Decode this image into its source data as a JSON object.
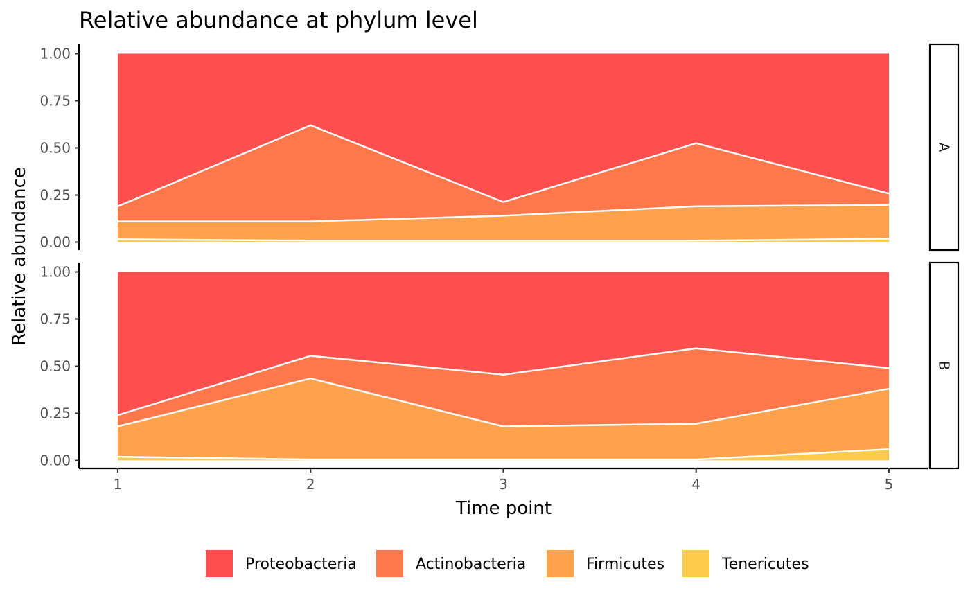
{
  "chart_data": {
    "type": "area",
    "stacked": true,
    "title": "Relative abundance at phylum level",
    "xlabel": "Time point",
    "ylabel": "Relative abundance",
    "x": [
      1,
      2,
      3,
      4,
      5
    ],
    "x_ticks": [
      "1",
      "2",
      "3",
      "4",
      "5"
    ],
    "y_ticks": [
      "0.00",
      "0.25",
      "0.50",
      "0.75",
      "1.00"
    ],
    "ylim": [
      0,
      1
    ],
    "grid": false,
    "legend_position": "bottom",
    "facet_labels": [
      "A",
      "B"
    ],
    "legend": [
      {
        "name": "Proteobacteria",
        "color": "#FF4F4F"
      },
      {
        "name": "Actinobacteria",
        "color": "#FF784C"
      },
      {
        "name": "Firmicutes",
        "color": "#FFA24B"
      },
      {
        "name": "Tenericutes",
        "color": "#FFCB4B"
      }
    ],
    "facets": [
      {
        "label": "A",
        "series": [
          {
            "name": "Tenericutes",
            "values": [
              0.015,
              0.008,
              0.008,
              0.008,
              0.018
            ]
          },
          {
            "name": "Firmicutes",
            "values": [
              0.095,
              0.102,
              0.132,
              0.182,
              0.18
            ]
          },
          {
            "name": "Actinobacteria",
            "values": [
              0.08,
              0.51,
              0.073,
              0.335,
              0.06
            ]
          },
          {
            "name": "Proteobacteria",
            "values": [
              0.81,
              0.38,
              0.787,
              0.475,
              0.742
            ]
          }
        ]
      },
      {
        "label": "B",
        "series": [
          {
            "name": "Tenericutes",
            "values": [
              0.02,
              0.005,
              0.005,
              0.005,
              0.06
            ]
          },
          {
            "name": "Firmicutes",
            "values": [
              0.16,
              0.43,
              0.175,
              0.19,
              0.32
            ]
          },
          {
            "name": "Actinobacteria",
            "values": [
              0.06,
              0.12,
              0.275,
              0.4,
              0.11
            ]
          },
          {
            "name": "Proteobacteria",
            "values": [
              0.76,
              0.445,
              0.545,
              0.405,
              0.51
            ]
          }
        ]
      }
    ]
  }
}
